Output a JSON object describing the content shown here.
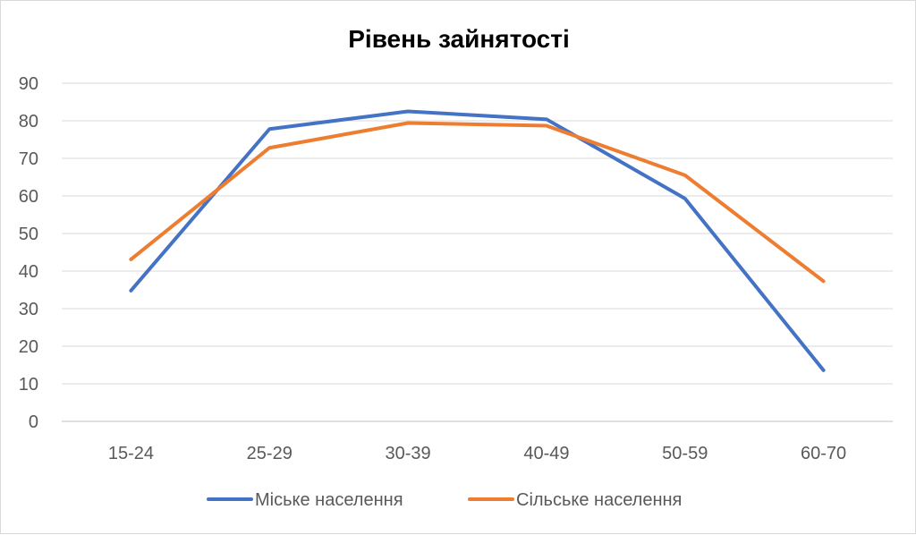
{
  "chart_data": {
    "type": "line",
    "title": "Рівень зайнятості",
    "xlabel": "",
    "ylabel": "",
    "categories": [
      "15-24",
      "25-29",
      "30-39",
      "40-49",
      "50-59",
      "60-70"
    ],
    "ylim": [
      0,
      90
    ],
    "yticks": [
      0,
      10,
      20,
      30,
      40,
      50,
      60,
      70,
      80,
      90
    ],
    "grid": true,
    "legend_position": "bottom",
    "series": [
      {
        "name": "Міське населення",
        "color": "#4472C4",
        "values": [
          34.8,
          77.8,
          82.5,
          80.4,
          59.3,
          13.6
        ]
      },
      {
        "name": "Сільське населення",
        "color": "#ED7D31",
        "values": [
          43.1,
          72.8,
          79.4,
          78.7,
          65.5,
          37.3
        ]
      }
    ]
  }
}
